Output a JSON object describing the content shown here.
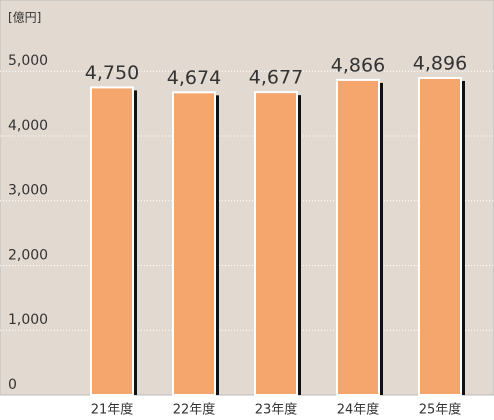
{
  "chart_data": {
    "type": "bar",
    "y_unit": "[億円]",
    "categories": [
      "21年度",
      "22年度",
      "23年度",
      "24年度",
      "25年度"
    ],
    "values": [
      4750,
      4674,
      4677,
      4866,
      4896
    ],
    "value_labels": [
      "4,750",
      "4,674",
      "4,677",
      "4,866",
      "4,896"
    ],
    "color": "#f5a66d",
    "ylim": [
      0,
      6100
    ],
    "yticks": [
      0,
      {
        "value": 1000,
        "label": "1,000"
      },
      {
        "value": 2000,
        "label": "2,000"
      },
      {
        "value": 3000,
        "label": "3,000"
      },
      {
        "value": 4000,
        "label": "4,000"
      },
      {
        "value": 5000,
        "label": "5,000"
      }
    ],
    "grid": true
  }
}
